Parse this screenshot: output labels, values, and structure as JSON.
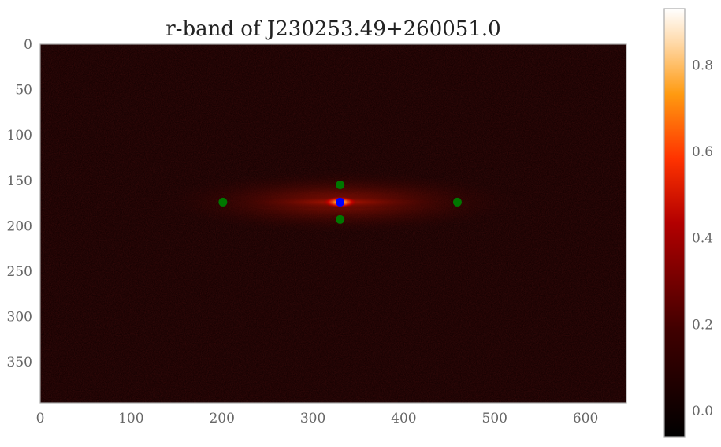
{
  "chart_data": {
    "type": "heatmap",
    "title": "r-band of J230253.49+260051.0",
    "xlabel": "",
    "ylabel": "",
    "xlim": [
      0,
      645
    ],
    "ylim": [
      395,
      0
    ],
    "x_ticks": [
      "0",
      "100",
      "200",
      "300",
      "400",
      "500",
      "600"
    ],
    "y_ticks": [
      "0",
      "50",
      "100",
      "150",
      "200",
      "250",
      "300",
      "350"
    ],
    "colormap": "gist_heat",
    "colorbar": {
      "range": [
        -0.06,
        0.93
      ],
      "ticks": [
        "0.0",
        "0.2",
        "0.4",
        "0.6",
        "0.8"
      ]
    },
    "grid": false,
    "source": {
      "x": 330,
      "y": 174,
      "peak": 0.93
    },
    "markers": [
      {
        "name": "center",
        "color": "#0000ff",
        "x": 330,
        "y": 174
      },
      {
        "name": "left",
        "color": "#007700",
        "x": 201,
        "y": 174
      },
      {
        "name": "right",
        "color": "#007700",
        "x": 459,
        "y": 174
      },
      {
        "name": "top",
        "color": "#007700",
        "x": 330,
        "y": 155
      },
      {
        "name": "bottom",
        "color": "#007700",
        "x": 330,
        "y": 193
      }
    ]
  }
}
